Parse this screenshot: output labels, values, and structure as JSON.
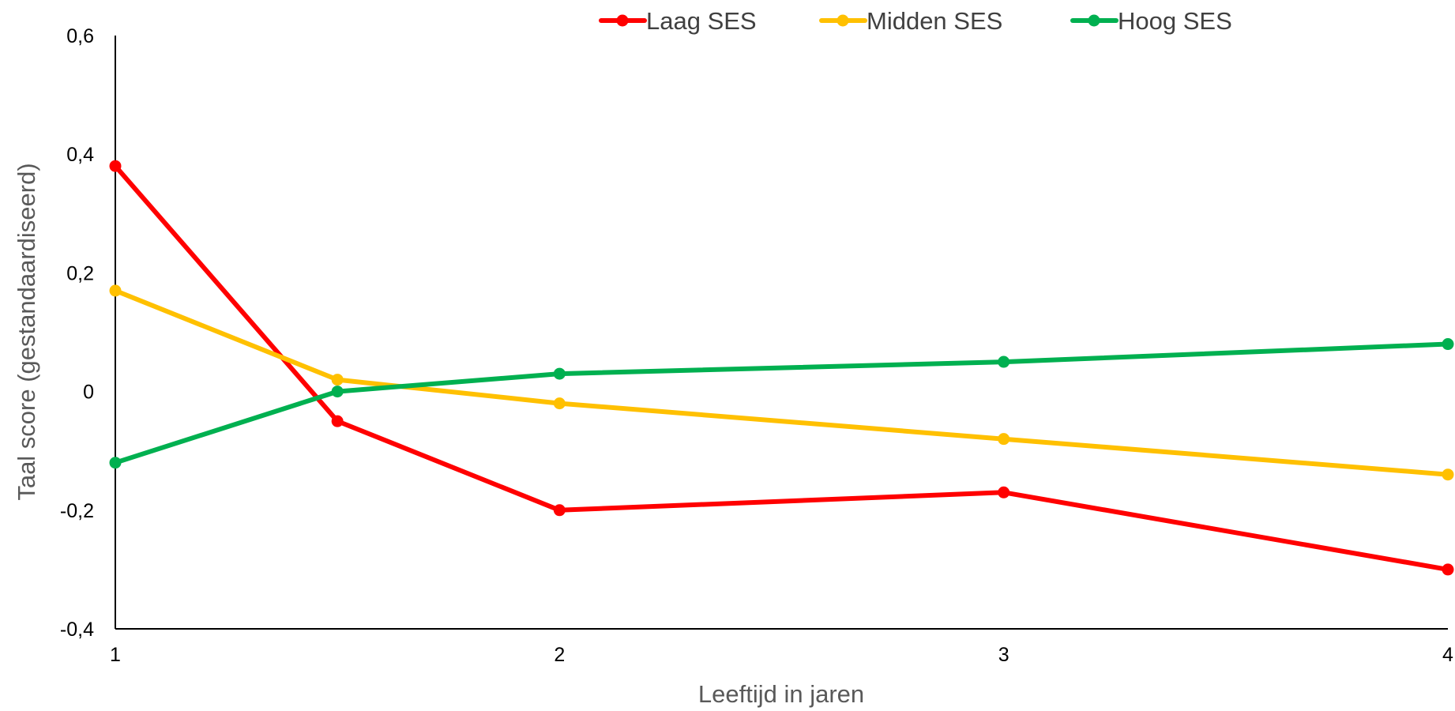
{
  "chart_data": {
    "type": "line",
    "title": "",
    "xlabel": "Leeftijd in jaren",
    "ylabel": "Taal score (gestandaardiseerd)",
    "xlim": [
      1,
      4
    ],
    "ylim": [
      -0.4,
      0.6
    ],
    "x_ticks": [
      {
        "value": 1,
        "label": "1"
      },
      {
        "value": 2,
        "label": "2"
      },
      {
        "value": 3,
        "label": "3"
      },
      {
        "value": 4,
        "label": "4"
      }
    ],
    "y_ticks": [
      {
        "value": 0.6,
        "label": "0,6"
      },
      {
        "value": 0.4,
        "label": "0,4"
      },
      {
        "value": 0.2,
        "label": "0,2"
      },
      {
        "value": 0,
        "label": "0"
      },
      {
        "value": -0.2,
        "label": "-0,2"
      },
      {
        "value": -0.4,
        "label": "-0,4"
      }
    ],
    "grid": false,
    "legend_position": "top-right",
    "series": [
      {
        "name": "Laag SES",
        "color": "#FF0000",
        "x": [
          1,
          1.5,
          2,
          3,
          4
        ],
        "y": [
          0.38,
          -0.05,
          -0.2,
          -0.17,
          -0.3
        ]
      },
      {
        "name": "Midden SES",
        "color": "#FFC000",
        "x": [
          1,
          1.5,
          2,
          3,
          4
        ],
        "y": [
          0.17,
          0.02,
          -0.02,
          -0.08,
          -0.14
        ]
      },
      {
        "name": "Hoog SES",
        "color": "#00B050",
        "x": [
          1,
          1.5,
          2,
          3,
          4
        ],
        "y": [
          -0.12,
          0.0,
          0.03,
          0.05,
          0.08
        ]
      }
    ]
  }
}
